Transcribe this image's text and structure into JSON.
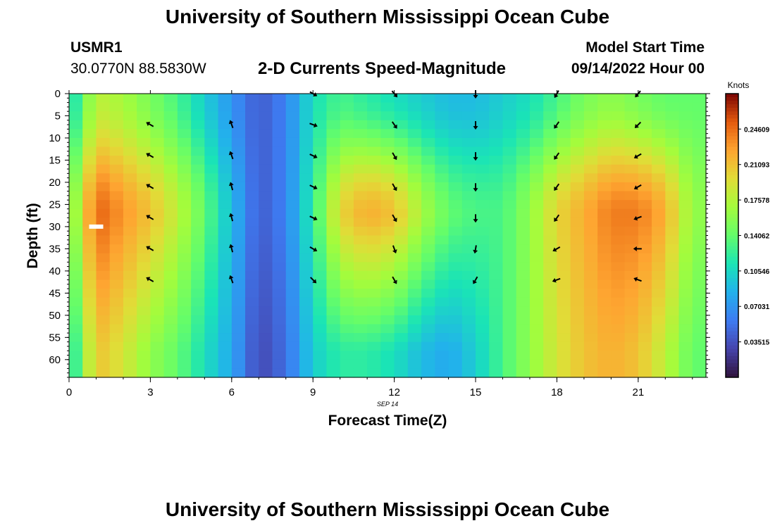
{
  "header": {
    "title": "University of Southern Mississippi Ocean Cube",
    "station_id": "USMR1",
    "station_coords": "30.0770N  88.5830W",
    "subtitle": "2-D Currents Speed-Magnitude",
    "model_start_label": "Model Start Time",
    "model_start_value": "09/14/2022 Hour 00"
  },
  "footer": {
    "title": "University of Southern Mississippi Ocean Cube"
  },
  "chart_data": {
    "type": "heatmap",
    "title": "2-D Currents Speed-Magnitude",
    "xlabel": "Forecast Time(Z)",
    "ylabel": "Depth (ft)",
    "date_label": "SEP 14",
    "x_ticks": [
      0,
      3,
      6,
      9,
      12,
      15,
      18,
      21
    ],
    "y_ticks": [
      0,
      5,
      10,
      15,
      20,
      25,
      30,
      35,
      40,
      45,
      50,
      55,
      60
    ],
    "xlim": [
      0,
      23.5
    ],
    "ylim": [
      0,
      64
    ],
    "y_inverted": true,
    "colorbar": {
      "label": "Knots",
      "ticks": [
        "0.24609",
        "0.21093",
        "0.17578",
        "0.14062",
        "0.10546",
        "0.07031",
        "0.03515"
      ],
      "range": [
        0.0,
        0.2812
      ],
      "colormap": "turbo"
    },
    "speed_profiles": {
      "hours": [
        0,
        1,
        2,
        3,
        4,
        5,
        6,
        7,
        8,
        9,
        10,
        11,
        12,
        13,
        14,
        15,
        16,
        17,
        18,
        19,
        20,
        21,
        22,
        23
      ],
      "surface": [
        0.1,
        0.18,
        0.17,
        0.15,
        0.13,
        0.1,
        0.07,
        0.04,
        0.06,
        0.11,
        0.13,
        0.12,
        0.11,
        0.1,
        0.09,
        0.09,
        0.1,
        0.11,
        0.13,
        0.15,
        0.16,
        0.15,
        0.14,
        0.14
      ],
      "mid": [
        0.14,
        0.25,
        0.23,
        0.21,
        0.18,
        0.14,
        0.09,
        0.04,
        0.06,
        0.12,
        0.2,
        0.22,
        0.21,
        0.17,
        0.14,
        0.13,
        0.13,
        0.16,
        0.2,
        0.22,
        0.24,
        0.24,
        0.22,
        0.16
      ],
      "bottom": [
        0.1,
        0.21,
        0.19,
        0.16,
        0.14,
        0.11,
        0.08,
        0.03,
        0.05,
        0.1,
        0.12,
        0.12,
        0.11,
        0.09,
        0.08,
        0.1,
        0.13,
        0.16,
        0.19,
        0.21,
        0.22,
        0.21,
        0.18,
        0.14
      ]
    },
    "arrow_depths": [
      0,
      7,
      14,
      21,
      28,
      35,
      42
    ],
    "arrows": [
      {
        "hour": 3,
        "dirs": [
          null,
          300,
          300,
          300,
          300,
          300,
          300
        ]
      },
      {
        "hour": 6,
        "dirs": [
          null,
          340,
          340,
          345,
          345,
          345,
          340
        ]
      },
      {
        "hour": 9,
        "dirs": [
          120,
          110,
          115,
          115,
          115,
          120,
          135
        ]
      },
      {
        "hour": 12,
        "dirs": [
          140,
          145,
          150,
          150,
          150,
          160,
          150
        ]
      },
      {
        "hour": 15,
        "dirs": [
          180,
          180,
          180,
          180,
          180,
          190,
          210
        ]
      },
      {
        "hour": 18,
        "dirs": [
          210,
          215,
          215,
          215,
          215,
          240,
          250
        ]
      },
      {
        "hour": 21,
        "dirs": [
          220,
          225,
          240,
          240,
          250,
          270,
          290
        ]
      }
    ],
    "marker": {
      "hour": 1,
      "depth": 30
    }
  }
}
